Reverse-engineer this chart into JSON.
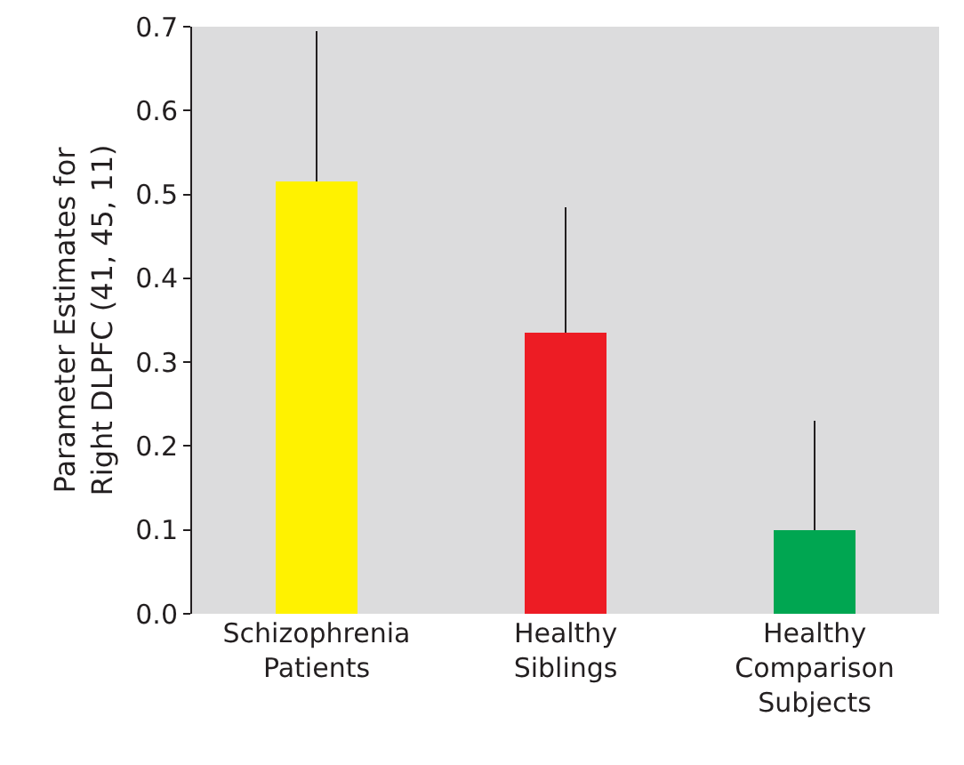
{
  "chart_data": {
    "type": "bar",
    "ylabel": "Parameter Estimates for\nRight DLPFC (41, 45, 11)",
    "categories": [
      "Schizophrenia\nPatients",
      "Healthy\nSiblings",
      "Healthy\nComparison\nSubjects"
    ],
    "values": [
      0.515,
      0.335,
      0.1
    ],
    "colors": [
      "#fff200",
      "#ed1c24",
      "#00a651"
    ],
    "errors": [
      [
        0.515,
        0.695
      ],
      [
        0.335,
        0.485
      ],
      [
        0.1,
        0.23
      ]
    ],
    "ylim": [
      0,
      0.7
    ],
    "yticks": [
      {
        "value": 0,
        "label": "0.0"
      },
      0.1,
      0.2,
      0.3,
      0.4,
      0.5,
      0.6,
      0.7
    ],
    "grid": false
  }
}
